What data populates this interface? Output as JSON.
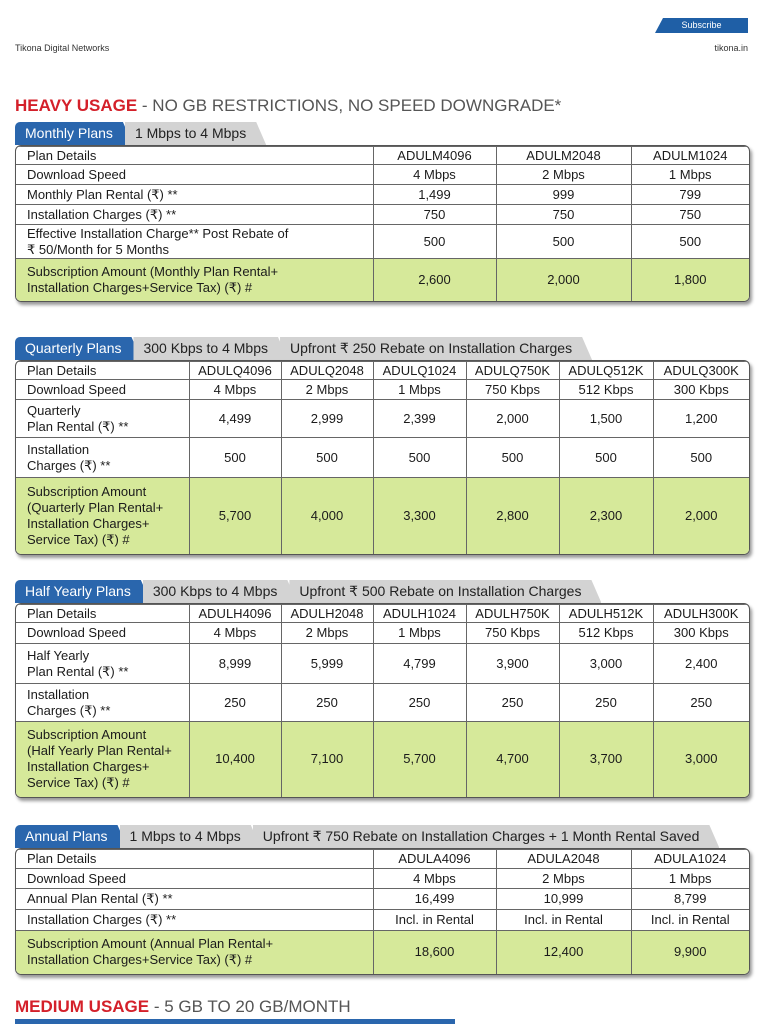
{
  "header": {
    "subscribe": "Subscribe",
    "left": "Tikona Digital Networks",
    "right": "tikona.in"
  },
  "heavy": {
    "title": "HEAVY USAGE",
    "subtitle": "- NO GB RESTRICTIONS, NO SPEED DOWNGRADE*"
  },
  "sections": [
    {
      "tabs": [
        "Monthly Plans",
        "1 Mbps to 4 Mbps"
      ],
      "rows": [
        [
          "Plan Details",
          "ADULM4096",
          "ADULM2048",
          "ADULM1024"
        ],
        [
          "Download Speed",
          "4 Mbps",
          "2 Mbps",
          "1 Mbps"
        ],
        [
          "Monthly Plan Rental (₹) **",
          "1,499",
          "999",
          "799"
        ],
        [
          "Installation Charges (₹) **",
          "750",
          "750",
          "750"
        ],
        [
          [
            "Effective Installation Charge** Post Rebate of",
            "₹ 50/Month for 5 Months"
          ],
          "500",
          "500",
          "500"
        ],
        [
          [
            "Subscription Amount (Monthly Plan Rental+",
            "Installation Charges+Service Tax) (₹) #"
          ],
          "2,600",
          "2,000",
          "1,800"
        ]
      ]
    },
    {
      "tabs": [
        "Quarterly Plans",
        "300 Kbps to 4 Mbps",
        "Upfront ₹ 250 Rebate on Installation Charges"
      ],
      "rows": [
        [
          "Plan Details",
          "ADULQ4096",
          "ADULQ2048",
          "ADULQ1024",
          "ADULQ750K",
          "ADULQ512K",
          "ADULQ300K"
        ],
        [
          "Download Speed",
          "4 Mbps",
          "2 Mbps",
          "1 Mbps",
          "750 Kbps",
          "512 Kbps",
          "300 Kbps"
        ],
        [
          [
            "Quarterly",
            "Plan Rental (₹) **"
          ],
          "4,499",
          "2,999",
          "2,399",
          "2,000",
          "1,500",
          "1,200"
        ],
        [
          [
            "Installation",
            "Charges (₹) **"
          ],
          "500",
          "500",
          "500",
          "500",
          "500",
          "500"
        ],
        [
          [
            "Subscription Amount",
            "(Quarterly Plan Rental+",
            "Installation Charges+",
            "Service Tax) (₹) #"
          ],
          "5,700",
          "4,000",
          "3,300",
          "2,800",
          "2,300",
          "2,000"
        ]
      ]
    },
    {
      "tabs": [
        "Half Yearly Plans",
        "300 Kbps to 4 Mbps",
        "Upfront ₹ 500 Rebate on Installation Charges"
      ],
      "rows": [
        [
          "Plan Details",
          "ADULH4096",
          "ADULH2048",
          "ADULH1024",
          "ADULH750K",
          "ADULH512K",
          "ADULH300K"
        ],
        [
          "Download Speed",
          "4 Mbps",
          "2 Mbps",
          "1 Mbps",
          "750 Kbps",
          "512 Kbps",
          "300 Kbps"
        ],
        [
          [
            "Half Yearly",
            "Plan Rental (₹) **"
          ],
          "8,999",
          "5,999",
          "4,799",
          "3,900",
          "3,000",
          "2,400"
        ],
        [
          [
            "Installation",
            "Charges (₹) **"
          ],
          "250",
          "250",
          "250",
          "250",
          "250",
          "250"
        ],
        [
          [
            "Subscription Amount",
            "(Half Yearly Plan Rental+",
            "Installation Charges+",
            "Service Tax) (₹) #"
          ],
          "10,400",
          "7,100",
          "5,700",
          "4,700",
          "3,700",
          "3,000"
        ]
      ]
    },
    {
      "tabs": [
        "Annual Plans",
        "1 Mbps to 4 Mbps",
        "Upfront ₹ 750 Rebate on Installation Charges + 1 Month Rental Saved"
      ],
      "rows": [
        [
          "Plan Details",
          "ADULA4096",
          "ADULA2048",
          "ADULA1024"
        ],
        [
          "Download Speed",
          "4 Mbps",
          "2 Mbps",
          "1 Mbps"
        ],
        [
          "Annual Plan Rental (₹) **",
          "16,499",
          "10,999",
          "8,799"
        ],
        [
          "Installation Charges (₹) **",
          "Incl. in Rental",
          "Incl. in Rental",
          "Incl. in Rental"
        ],
        [
          [
            "Subscription Amount (Annual Plan Rental+",
            "Installation Charges+Service Tax) (₹) #"
          ],
          "18,600",
          "12,400",
          "9,900"
        ]
      ]
    }
  ],
  "medium": {
    "title": "MEDIUM USAGE",
    "subtitle": "- 5 GB TO 20 GB/MONTH"
  }
}
